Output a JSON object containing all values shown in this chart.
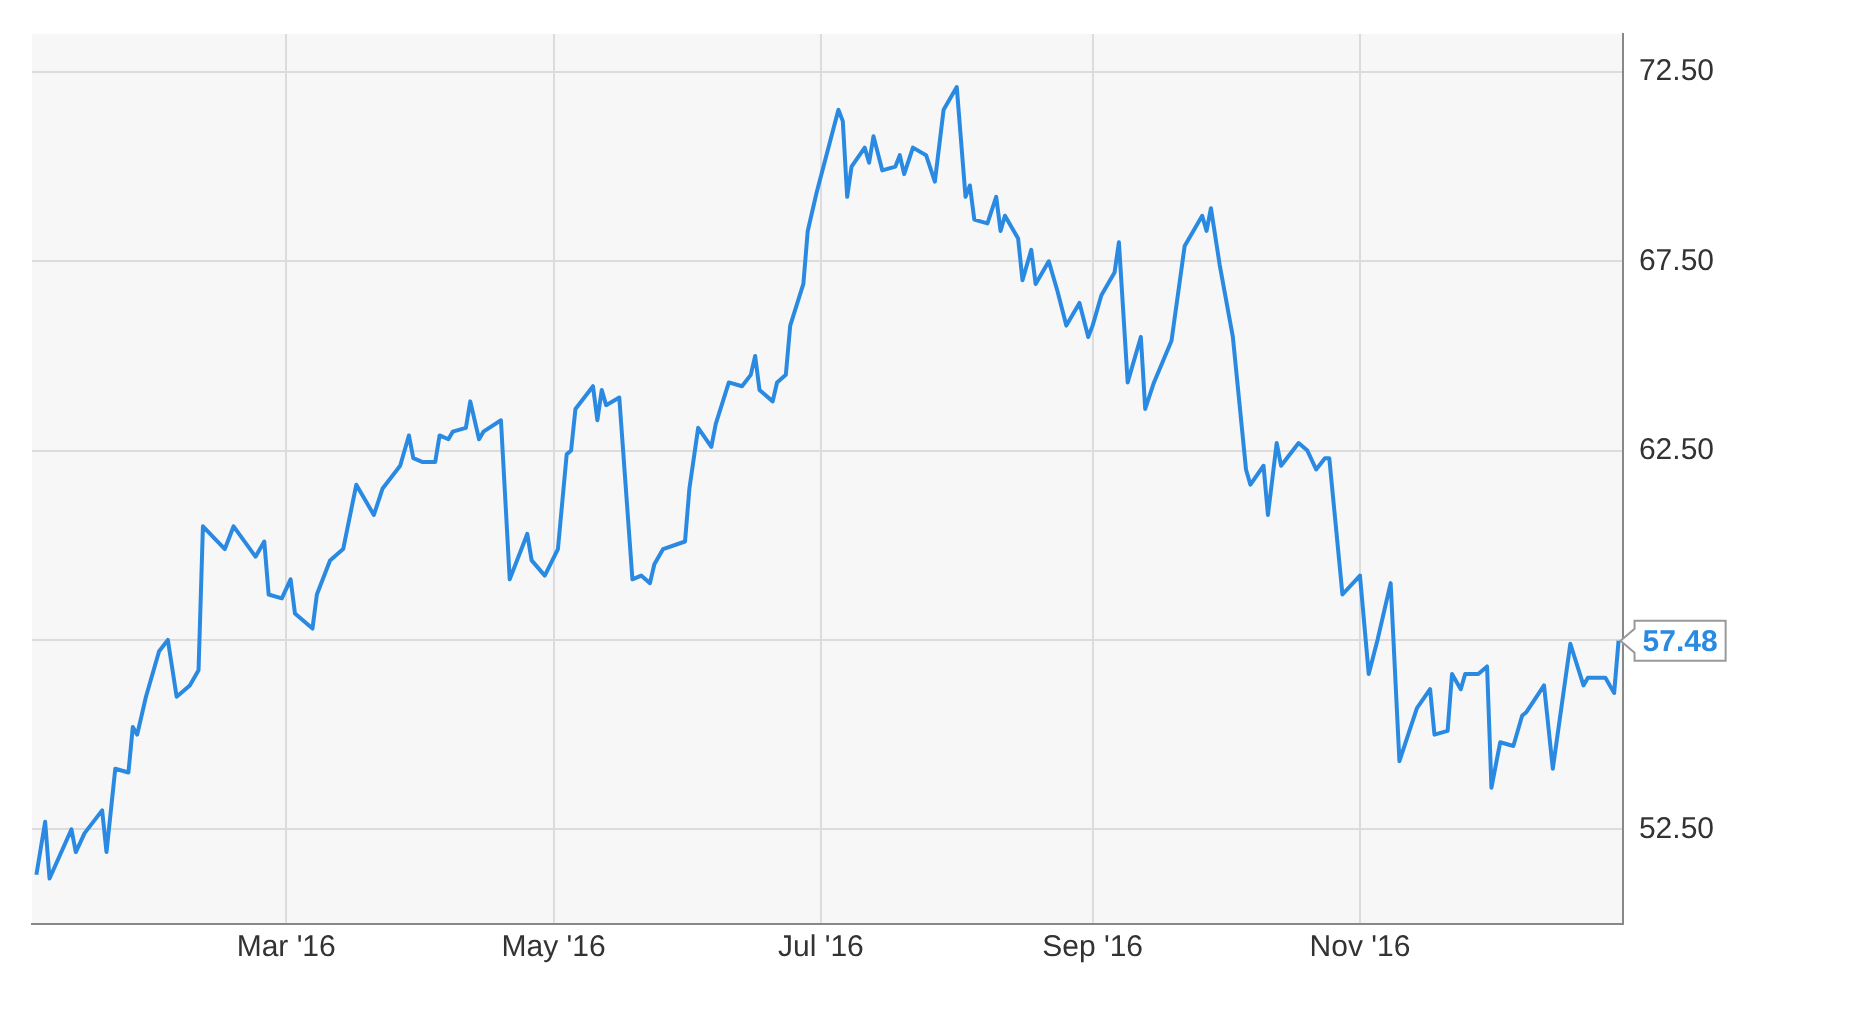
{
  "chart_data": {
    "type": "line",
    "x": [
      "2016-01-04",
      "2016-01-06",
      "2016-01-07",
      "2016-01-12",
      "2016-01-13",
      "2016-01-15",
      "2016-01-19",
      "2016-01-20",
      "2016-01-22",
      "2016-01-25",
      "2016-01-26",
      "2016-01-27",
      "2016-01-29",
      "2016-02-01",
      "2016-02-03",
      "2016-02-05",
      "2016-02-08",
      "2016-02-10",
      "2016-02-11",
      "2016-02-16",
      "2016-02-18",
      "2016-02-23",
      "2016-02-25",
      "2016-02-26",
      "2016-02-29",
      "2016-03-02",
      "2016-03-03",
      "2016-03-07",
      "2016-03-08",
      "2016-03-11",
      "2016-03-14",
      "2016-03-17",
      "2016-03-21",
      "2016-03-23",
      "2016-03-27",
      "2016-03-29",
      "2016-03-30",
      "2016-04-01",
      "2016-04-04",
      "2016-04-05",
      "2016-04-07",
      "2016-04-08",
      "2016-04-11",
      "2016-04-12",
      "2016-04-14",
      "2016-04-15",
      "2016-04-19",
      "2016-04-21",
      "2016-04-25",
      "2016-04-26",
      "2016-04-29",
      "2016-05-02",
      "2016-05-04",
      "2016-05-05",
      "2016-05-06",
      "2016-05-10",
      "2016-05-11",
      "2016-05-12",
      "2016-05-13",
      "2016-05-16",
      "2016-05-19",
      "2016-05-21",
      "2016-05-23",
      "2016-05-24",
      "2016-05-26",
      "2016-05-31",
      "2016-06-01",
      "2016-06-03",
      "2016-06-06",
      "2016-06-07",
      "2016-06-10",
      "2016-06-13",
      "2016-06-15",
      "2016-06-16",
      "2016-06-17",
      "2016-06-20",
      "2016-06-21",
      "2016-06-23",
      "2016-06-24",
      "2016-06-27",
      "2016-06-28",
      "2016-06-30",
      "2016-07-05",
      "2016-07-06",
      "2016-07-07",
      "2016-07-08",
      "2016-07-11",
      "2016-07-12",
      "2016-07-13",
      "2016-07-15",
      "2016-07-18",
      "2016-07-19",
      "2016-07-20",
      "2016-07-22",
      "2016-07-25",
      "2016-07-27",
      "2016-07-29",
      "2016-08-01",
      "2016-08-03",
      "2016-08-04",
      "2016-08-05",
      "2016-08-08",
      "2016-08-10",
      "2016-08-11",
      "2016-08-12",
      "2016-08-15",
      "2016-08-16",
      "2016-08-18",
      "2016-08-19",
      "2016-08-22",
      "2016-08-24",
      "2016-08-26",
      "2016-08-29",
      "2016-08-31",
      "2016-09-01",
      "2016-09-03",
      "2016-09-06",
      "2016-09-07",
      "2016-09-09",
      "2016-09-12",
      "2016-09-13",
      "2016-09-15",
      "2016-09-19",
      "2016-09-22",
      "2016-09-26",
      "2016-09-27",
      "2016-09-28",
      "2016-09-30",
      "2016-10-03",
      "2016-10-06",
      "2016-10-07",
      "2016-10-10",
      "2016-10-11",
      "2016-10-13",
      "2016-10-14",
      "2016-10-18",
      "2016-10-20",
      "2016-10-22",
      "2016-10-24",
      "2016-10-25",
      "2016-10-28",
      "2016-11-01",
      "2016-11-03",
      "2016-11-05",
      "2016-11-08",
      "2016-11-10",
      "2016-11-14",
      "2016-11-17",
      "2016-11-18",
      "2016-11-21",
      "2016-11-22",
      "2016-11-24",
      "2016-11-25",
      "2016-11-28",
      "2016-11-30",
      "2016-12-01",
      "2016-12-03",
      "2016-12-06",
      "2016-12-08",
      "2016-12-09",
      "2016-12-13",
      "2016-12-15",
      "2016-12-19",
      "2016-12-22",
      "2016-12-23",
      "2016-12-27",
      "2016-12-29",
      "2016-12-30"
    ],
    "series": [
      {
        "color": "#2a8ae2",
        "values": [
          51.3,
          52.7,
          51.2,
          52.5,
          51.9,
          52.4,
          53.0,
          51.9,
          54.1,
          54.0,
          55.2,
          55.0,
          56.0,
          57.2,
          57.5,
          56.0,
          56.3,
          56.7,
          60.5,
          59.9,
          60.5,
          59.7,
          60.1,
          58.7,
          58.6,
          59.1,
          58.2,
          57.8,
          58.7,
          59.6,
          59.9,
          61.6,
          60.8,
          61.5,
          62.1,
          62.9,
          62.3,
          62.2,
          62.2,
          62.9,
          62.8,
          63.0,
          63.1,
          63.8,
          62.8,
          63.0,
          63.3,
          59.1,
          60.3,
          59.6,
          59.2,
          59.9,
          62.4,
          62.5,
          63.6,
          64.2,
          63.3,
          64.1,
          63.7,
          63.9,
          59.1,
          59.2,
          59.0,
          59.5,
          59.9,
          60.1,
          61.5,
          63.1,
          62.6,
          63.2,
          64.3,
          64.2,
          64.5,
          65.0,
          64.1,
          63.8,
          64.3,
          64.5,
          65.8,
          66.9,
          68.3,
          69.3,
          71.5,
          71.2,
          69.2,
          70.0,
          70.5,
          70.1,
          70.8,
          69.9,
          70.0,
          70.3,
          69.8,
          70.5,
          70.3,
          69.6,
          71.5,
          72.1,
          69.2,
          69.5,
          68.6,
          68.5,
          69.2,
          68.3,
          68.7,
          68.1,
          67.0,
          67.8,
          66.9,
          67.5,
          66.7,
          65.8,
          66.4,
          65.5,
          65.8,
          66.6,
          67.2,
          68.0,
          64.3,
          65.5,
          63.6,
          64.3,
          65.4,
          67.9,
          68.7,
          68.3,
          68.9,
          67.4,
          65.5,
          62.0,
          61.6,
          62.1,
          60.8,
          62.7,
          62.1,
          62.7,
          62.5,
          62.0,
          62.3,
          62.3,
          58.7,
          59.2,
          56.6,
          57.5,
          59.0,
          54.3,
          55.7,
          56.2,
          55.0,
          55.1,
          56.6,
          56.2,
          56.6,
          56.6,
          56.8,
          53.6,
          54.8,
          54.7,
          55.5,
          55.6,
          56.3,
          54.1,
          57.4,
          56.3,
          56.5,
          56.5,
          56.1,
          57.48
        ]
      }
    ],
    "xlim": [
      "2016-01-03",
      "2016-12-31"
    ],
    "xticks": [
      {
        "value": "2016-03-01",
        "label": "Mar '16"
      },
      {
        "value": "2016-05-01",
        "label": "May '16"
      },
      {
        "value": "2016-07-01",
        "label": "Jul '16"
      },
      {
        "value": "2016-09-01",
        "label": "Sep '16"
      },
      {
        "value": "2016-11-01",
        "label": "Nov '16"
      }
    ],
    "ylim": [
      50,
      73.5
    ],
    "yticks": [
      {
        "value": 52.5,
        "label": "52.50"
      },
      {
        "value": 57.5,
        "label": null
      },
      {
        "value": 62.5,
        "label": "62.50"
      },
      {
        "value": 67.5,
        "label": "67.50"
      },
      {
        "value": 72.5,
        "label": "72.50"
      }
    ],
    "grid": true,
    "marker": "none",
    "annotations": [
      {
        "text": "57.48",
        "x": "2016-12-30",
        "y": 57.48
      }
    ]
  }
}
